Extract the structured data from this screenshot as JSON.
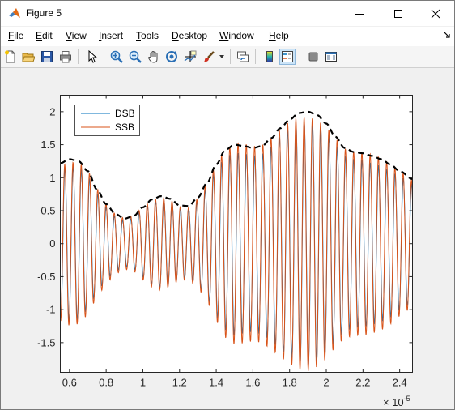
{
  "window": {
    "title": "Figure 5"
  },
  "menu": {
    "items": [
      {
        "label": "File",
        "accel": "F",
        "rest": "ile"
      },
      {
        "label": "Edit",
        "accel": "E",
        "rest": "dit"
      },
      {
        "label": "View",
        "accel": "V",
        "rest": "iew"
      },
      {
        "label": "Insert",
        "accel": "I",
        "rest": "nsert"
      },
      {
        "label": "Tools",
        "accel": "T",
        "rest": "ools"
      },
      {
        "label": "Desktop",
        "accel": "D",
        "rest": "esktop"
      },
      {
        "label": "Window",
        "accel": "W",
        "rest": "indow"
      },
      {
        "label": "Help",
        "accel": "H",
        "rest": "elp"
      }
    ]
  },
  "toolbar": {
    "buttons": [
      "new-figure-icon",
      "open-file-icon",
      "save-icon",
      "print-icon",
      "edit-plot-arrow-icon",
      "zoom-in-icon",
      "zoom-out-icon",
      "pan-hand-icon",
      "rotate-3d-icon",
      "data-cursor-icon",
      "brush-icon",
      "link-plot-icon",
      "colorbar-icon",
      "legend-icon",
      "hide-plot-tools-icon",
      "show-plot-tools-icon"
    ]
  },
  "colors": {
    "dsb": "#0072BD",
    "ssb": "#D95319",
    "envelope": "#000000",
    "axes_bg": "#ffffff",
    "figure_bg": "#f0f0f0"
  },
  "chart_data": {
    "type": "line",
    "title": "",
    "xlabel": "",
    "ylabel": "",
    "x_exponent_label": "× 10",
    "x_exponent_power": "-5",
    "xlim": [
      0.55,
      2.47
    ],
    "ylim": [
      -1.95,
      2.25
    ],
    "x_ticks": [
      0.6,
      0.8,
      1,
      1.2,
      1.4,
      1.6,
      1.8,
      2,
      2.2,
      2.4
    ],
    "x_tick_labels": [
      "0.6",
      "0.8",
      "1",
      "1.2",
      "1.4",
      "1.6",
      "1.8",
      "2",
      "2.2",
      "2.4"
    ],
    "y_ticks": [
      -1.5,
      -1,
      -0.5,
      0,
      0.5,
      1,
      1.5,
      2
    ],
    "y_tick_labels": [
      "-1.5",
      "-1",
      "-0.5",
      "0",
      "0.5",
      "1",
      "1.5",
      "2"
    ],
    "grid": false,
    "legend": {
      "placement": "top-left",
      "entries": [
        "DSB",
        "SSB"
      ]
    },
    "carrier_period": 0.045,
    "series": [
      {
        "name": "DSB",
        "style": "solid"
      },
      {
        "name": "SSB",
        "style": "solid"
      }
    ],
    "envelope": {
      "style": "dashed",
      "x": [
        0.55,
        0.6,
        0.65,
        0.7,
        0.75,
        0.8,
        0.85,
        0.9,
        0.95,
        1.0,
        1.05,
        1.1,
        1.15,
        1.2,
        1.25,
        1.3,
        1.35,
        1.4,
        1.45,
        1.5,
        1.55,
        1.6,
        1.65,
        1.7,
        1.75,
        1.8,
        1.85,
        1.9,
        1.95,
        2.0,
        2.05,
        2.1,
        2.15,
        2.2,
        2.25,
        2.3,
        2.35,
        2.4,
        2.47
      ],
      "y": [
        1.22,
        1.28,
        1.25,
        1.1,
        0.82,
        0.6,
        0.45,
        0.38,
        0.42,
        0.55,
        0.67,
        0.72,
        0.68,
        0.58,
        0.57,
        0.7,
        0.92,
        1.2,
        1.42,
        1.5,
        1.48,
        1.45,
        1.48,
        1.6,
        1.75,
        1.88,
        1.98,
        2.0,
        1.95,
        1.82,
        1.62,
        1.45,
        1.39,
        1.37,
        1.33,
        1.28,
        1.2,
        1.1,
        0.98
      ]
    }
  }
}
